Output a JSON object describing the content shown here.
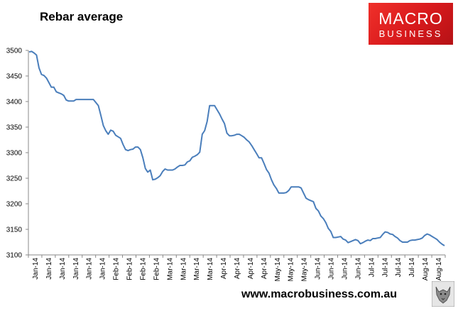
{
  "header": {
    "title": "Rebar average",
    "logo_line1": "MACRO",
    "logo_line2": "BUSINESS"
  },
  "footer": {
    "website": "www.macrobusiness.com.au",
    "mascot_icon": "wolf-icon"
  },
  "colors": {
    "line": "#4a7ebb",
    "logo_red": "#d7191c"
  },
  "chart_data": {
    "type": "line",
    "title": "Rebar average",
    "xlabel": "",
    "ylabel": "",
    "ylim": [
      3100,
      3500
    ],
    "yticks": [
      3100,
      3150,
      3200,
      3250,
      3300,
      3350,
      3400,
      3450,
      3500
    ],
    "grid": false,
    "legend": "none",
    "xtick_labels": [
      "Jan-14",
      "Jan-14",
      "Jan-14",
      "Jan-14",
      "Jan-14",
      "Jan-14",
      "Feb-14",
      "Feb-14",
      "Feb-14",
      "Feb-14",
      "Mar-14",
      "Mar-14",
      "Mar-14",
      "Mar-14",
      "Apr-14",
      "Apr-14",
      "Apr-14",
      "Apr-14",
      "May-14",
      "May-14",
      "May-14",
      "Jun-14",
      "Jun-14",
      "Jun-14",
      "Jun-14",
      "Jul-14",
      "Jul-14",
      "Jul-14",
      "Jul-14",
      "Aug-14",
      "Aug-14"
    ],
    "series": [
      {
        "values": [
          3497,
          3498,
          3495,
          3491,
          3466,
          3453,
          3451,
          3446,
          3437,
          3428,
          3428,
          3419,
          3417,
          3415,
          3412,
          3403,
          3401,
          3401,
          3401,
          3404,
          3404,
          3404,
          3404,
          3404,
          3404,
          3404,
          3404,
          3398,
          3392,
          3373,
          3353,
          3343,
          3336,
          3344,
          3342,
          3334,
          3331,
          3328,
          3316,
          3306,
          3304,
          3306,
          3307,
          3311,
          3311,
          3306,
          3290,
          3269,
          3262,
          3266,
          3247,
          3248,
          3251,
          3255,
          3263,
          3268,
          3266,
          3266,
          3266,
          3268,
          3272,
          3275,
          3275,
          3276,
          3282,
          3284,
          3291,
          3293,
          3296,
          3301,
          3336,
          3343,
          3361,
          3392,
          3392,
          3392,
          3384,
          3376,
          3366,
          3357,
          3338,
          3333,
          3333,
          3334,
          3336,
          3336,
          3333,
          3330,
          3325,
          3321,
          3314,
          3306,
          3298,
          3290,
          3290,
          3279,
          3267,
          3260,
          3247,
          3237,
          3230,
          3221,
          3221,
          3221,
          3222,
          3226,
          3233,
          3233,
          3233,
          3233,
          3231,
          3221,
          3211,
          3208,
          3206,
          3204,
          3191,
          3186,
          3176,
          3171,
          3163,
          3152,
          3146,
          3134,
          3134,
          3135,
          3136,
          3131,
          3129,
          3124,
          3126,
          3128,
          3130,
          3128,
          3122,
          3124,
          3127,
          3129,
          3128,
          3132,
          3132,
          3133,
          3134,
          3140,
          3145,
          3144,
          3141,
          3140,
          3136,
          3133,
          3128,
          3125,
          3125,
          3125,
          3128,
          3129,
          3129,
          3130,
          3131,
          3133,
          3138,
          3141,
          3139,
          3136,
          3133,
          3130,
          3125,
          3121,
          3118
        ]
      }
    ]
  }
}
